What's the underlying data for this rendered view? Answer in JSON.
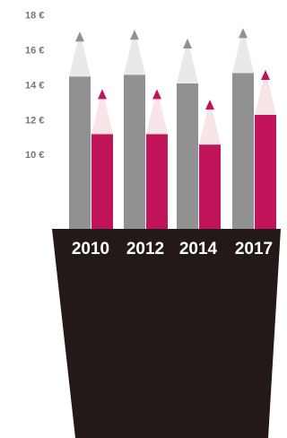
{
  "chart_data": {
    "type": "pencil-bar",
    "categories": [
      "2010",
      "2012",
      "2014",
      "2017"
    ],
    "series": [
      {
        "color": "#919193",
        "tip_color": "#e9e9ea",
        "values": [
          17.1,
          17.2,
          16.7,
          17.3
        ]
      },
      {
        "color": "#c1145b",
        "tip_color": "#f8e5e8",
        "values": [
          13.8,
          13.8,
          13.2,
          14.9
        ]
      }
    ],
    "ylim": [
      5.8,
      18.5
    ],
    "yticks": [
      {
        "value": 18,
        "label": "18 €"
      },
      {
        "value": 16,
        "label": "16 €"
      },
      {
        "value": 14,
        "label": "14 €"
      },
      {
        "value": 12,
        "label": "12 €"
      },
      {
        "value": 10,
        "label": "10 €"
      }
    ],
    "pot_color": "#231a18"
  }
}
